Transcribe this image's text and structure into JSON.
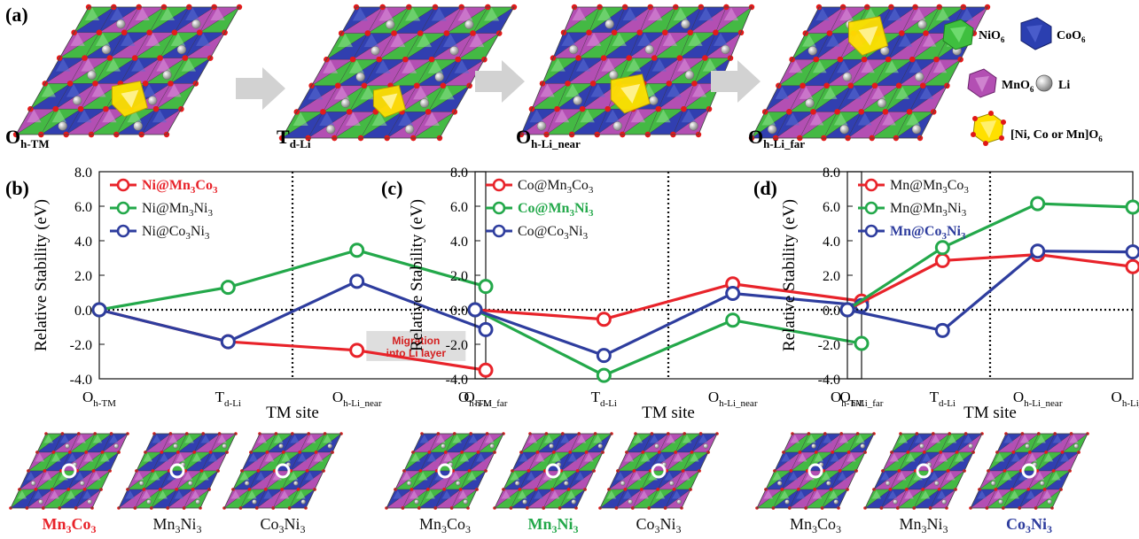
{
  "panel_a": {
    "label": "(a)",
    "stages": [
      {
        "main": "O",
        "sub": "h-TM"
      },
      {
        "main": "T",
        "sub": "d-Li"
      },
      {
        "main": "O",
        "sub": "h-Li_near"
      },
      {
        "main": "O",
        "sub": "h-Li_far"
      }
    ],
    "legend": [
      {
        "main": "NiO",
        "sub": "6",
        "color": "#3fbf3f",
        "icon": "green-octahedron-icon"
      },
      {
        "main": "CoO",
        "sub": "6",
        "color": "#2b3fb0",
        "icon": "blue-octahedron-icon"
      },
      {
        "main": "MnO",
        "sub": "6",
        "color": "#b34fb3",
        "icon": "purple-octahedron-icon"
      },
      {
        "main": "Li",
        "sub": "",
        "color": "#a8a8a8",
        "icon": "gray-sphere-icon"
      },
      {
        "main": "[Ni, Co or Mn]O",
        "sub": "6",
        "color": "#ffe000",
        "icon": "yellow-octahedron-icon"
      }
    ]
  },
  "chart_data": [
    {
      "type": "line",
      "panel": "(b)",
      "ylabel": "Relative Stability (eV)",
      "xlabel": "TM site",
      "ylim": [
        -4.0,
        8.0
      ],
      "yticks": [
        "8.0",
        "6.0",
        "4.0",
        "2.0",
        "0.0",
        "-2.0",
        "-4.0"
      ],
      "categories": [
        {
          "main": "O",
          "sub": "h-TM"
        },
        {
          "main": "T",
          "sub": "d-Li"
        },
        {
          "main": "O",
          "sub": "h-Li_near"
        },
        {
          "main": "O",
          "sub": "h-Li_far"
        }
      ],
      "series": [
        {
          "name": "Ni@Mn3Co3",
          "label": {
            "a": "Ni@Mn",
            "b": "3",
            "c": "Co",
            "d": "3"
          },
          "color": "#e8232a",
          "bold": true,
          "values": [
            0.0,
            -1.85,
            -2.35,
            -3.5
          ]
        },
        {
          "name": "Ni@Mn3Ni3",
          "label": {
            "a": "Ni@Mn",
            "b": "3",
            "c": "Ni",
            "d": "3"
          },
          "color": "#23a84a",
          "bold": false,
          "values": [
            0.0,
            1.3,
            3.45,
            1.35
          ]
        },
        {
          "name": "Ni@Co3Ni3",
          "label": {
            "a": "Ni@Co",
            "b": "3",
            "c": "Ni",
            "d": "3"
          },
          "color": "#2e3d9e",
          "bold": false,
          "values": [
            0.0,
            -1.85,
            1.65,
            -1.15
          ]
        }
      ],
      "annotation": {
        "line1": "Migration",
        "line2": "into Li layer"
      },
      "structures": [
        {
          "label": {
            "a": "Mn",
            "b": "3",
            "c": "Co",
            "d": "3"
          },
          "color": "#e8232a",
          "bold": true
        },
        {
          "label": {
            "a": "Mn",
            "b": "3",
            "c": "Ni",
            "d": "3"
          },
          "color": "#111111",
          "bold": false
        },
        {
          "label": {
            "a": "Co",
            "b": "3",
            "c": "Ni",
            "d": "3"
          },
          "color": "#111111",
          "bold": false
        }
      ]
    },
    {
      "type": "line",
      "panel": "(c)",
      "ylabel": "Relative Stability (eV)",
      "xlabel": "TM site",
      "ylim": [
        -4.0,
        8.0
      ],
      "yticks": [
        "8.0",
        "6.0",
        "4.0",
        "2.0",
        "0.0",
        "-2.0",
        "-4.0"
      ],
      "categories": [
        {
          "main": "O",
          "sub": "h-TM"
        },
        {
          "main": "T",
          "sub": "d-Li"
        },
        {
          "main": "O",
          "sub": "h-Li_near"
        },
        {
          "main": "O",
          "sub": "h-Li_far"
        }
      ],
      "series": [
        {
          "name": "Co@Mn3Co3",
          "label": {
            "a": "Co@Mn",
            "b": "3",
            "c": "Co",
            "d": "3"
          },
          "color": "#e8232a",
          "bold": false,
          "values": [
            0.0,
            -0.55,
            1.5,
            0.5
          ]
        },
        {
          "name": "Co@Mn3Ni3",
          "label": {
            "a": "Co@Mn",
            "b": "3",
            "c": "Ni",
            "d": "3"
          },
          "color": "#23a84a",
          "bold": true,
          "values": [
            0.0,
            -3.8,
            -0.6,
            -1.95
          ]
        },
        {
          "name": "Co@Co3Ni3",
          "label": {
            "a": "Co@Co",
            "b": "3",
            "c": "Ni",
            "d": "3"
          },
          "color": "#2e3d9e",
          "bold": false,
          "values": [
            0.0,
            -2.65,
            0.95,
            0.25
          ]
        }
      ],
      "structures": [
        {
          "label": {
            "a": "Mn",
            "b": "3",
            "c": "Co",
            "d": "3"
          },
          "color": "#111111",
          "bold": false
        },
        {
          "label": {
            "a": "Mn",
            "b": "3",
            "c": "Ni",
            "d": "3"
          },
          "color": "#23a84a",
          "bold": true
        },
        {
          "label": {
            "a": "Co",
            "b": "3",
            "c": "Ni",
            "d": "3"
          },
          "color": "#111111",
          "bold": false
        }
      ]
    },
    {
      "type": "line",
      "panel": "(d)",
      "ylabel": "Relative Stability (eV)",
      "xlabel": "TM site",
      "ylim": [
        -4.0,
        8.0
      ],
      "yticks": [
        "8.0",
        "6.0",
        "4.0",
        "2.0",
        "0.0",
        "-2.0",
        "-4.0"
      ],
      "categories": [
        {
          "main": "O",
          "sub": "h-TM"
        },
        {
          "main": "T",
          "sub": "d-Li"
        },
        {
          "main": "O",
          "sub": "h-Li_near"
        },
        {
          "main": "O",
          "sub": "h-Li_far"
        }
      ],
      "series": [
        {
          "name": "Mn@Mn3Co3",
          "label": {
            "a": "Mn@Mn",
            "b": "3",
            "c": "Co",
            "d": "3"
          },
          "color": "#e8232a",
          "bold": false,
          "values": [
            0.0,
            2.85,
            3.2,
            2.5
          ]
        },
        {
          "name": "Mn@Mn3Ni3",
          "label": {
            "a": "Mn@Mn",
            "b": "3",
            "c": "Ni",
            "d": "3"
          },
          "color": "#23a84a",
          "bold": false,
          "values": [
            0.0,
            3.6,
            6.15,
            5.95
          ]
        },
        {
          "name": "Mn@Co3Ni3",
          "label": {
            "a": "Mn@Co",
            "b": "3",
            "c": "Ni",
            "d": "3"
          },
          "color": "#2e3d9e",
          "bold": true,
          "values": [
            0.0,
            -1.2,
            3.4,
            3.35
          ]
        }
      ],
      "structures": [
        {
          "label": {
            "a": "Mn",
            "b": "3",
            "c": "Co",
            "d": "3"
          },
          "color": "#111111",
          "bold": false
        },
        {
          "label": {
            "a": "Mn",
            "b": "3",
            "c": "Ni",
            "d": "3"
          },
          "color": "#111111",
          "bold": false
        },
        {
          "label": {
            "a": "Co",
            "b": "3",
            "c": "Ni",
            "d": "3"
          },
          "color": "#2e3d9e",
          "bold": true
        }
      ]
    }
  ]
}
